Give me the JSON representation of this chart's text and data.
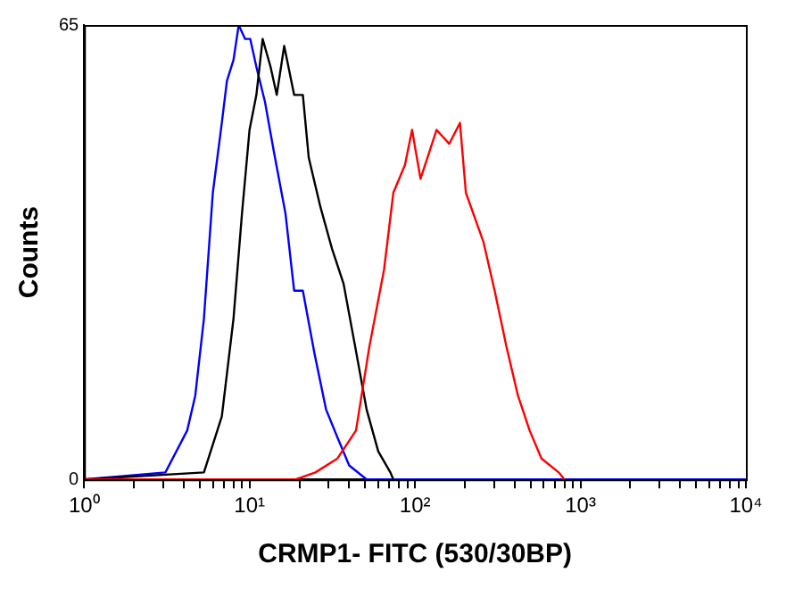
{
  "chart_data": {
    "type": "line",
    "xlabel": "CRMP1- FITC (530/30BP)",
    "ylabel": "Counts",
    "log": "x",
    "grid": false,
    "legend": false,
    "marker": "none",
    "line_style": "solid",
    "xlim": [
      1,
      10000
    ],
    "ylim": [
      0,
      65
    ],
    "xticks": [
      {
        "value": 1,
        "label": "10⁰"
      },
      {
        "value": 2,
        "label": null
      },
      {
        "value": 3,
        "label": null
      },
      {
        "value": 4,
        "label": null
      },
      {
        "value": 5,
        "label": null
      },
      {
        "value": 6,
        "label": null
      },
      {
        "value": 7,
        "label": null
      },
      {
        "value": 8,
        "label": null
      },
      {
        "value": 9,
        "label": null
      },
      {
        "value": 10,
        "label": "10¹"
      },
      {
        "value": 20,
        "label": null
      },
      {
        "value": 30,
        "label": null
      },
      {
        "value": 40,
        "label": null
      },
      {
        "value": 50,
        "label": null
      },
      {
        "value": 60,
        "label": null
      },
      {
        "value": 70,
        "label": null
      },
      {
        "value": 80,
        "label": null
      },
      {
        "value": 90,
        "label": null
      },
      {
        "value": 100,
        "label": "10²"
      },
      {
        "value": 200,
        "label": null
      },
      {
        "value": 300,
        "label": null
      },
      {
        "value": 400,
        "label": null
      },
      {
        "value": 500,
        "label": null
      },
      {
        "value": 600,
        "label": null
      },
      {
        "value": 700,
        "label": null
      },
      {
        "value": 800,
        "label": null
      },
      {
        "value": 900,
        "label": null
      },
      {
        "value": 1000,
        "label": "10³"
      },
      {
        "value": 2000,
        "label": null
      },
      {
        "value": 3000,
        "label": null
      },
      {
        "value": 4000,
        "label": null
      },
      {
        "value": 5000,
        "label": null
      },
      {
        "value": 6000,
        "label": null
      },
      {
        "value": 7000,
        "label": null
      },
      {
        "value": 8000,
        "label": null
      },
      {
        "value": 9000,
        "label": null
      },
      {
        "value": 10000,
        "label": "10⁴"
      }
    ],
    "yticks": [
      0,
      65
    ],
    "series": [
      {
        "color": "#ff0000",
        "x": [
          1,
          19,
          25,
          34,
          44,
          53,
          65,
          74,
          87,
          96,
          108,
          135,
          161,
          187,
          203,
          259,
          303,
          357,
          419,
          493,
          581,
          739,
          800
        ],
        "values": [
          0,
          0,
          1,
          3,
          7,
          19,
          30,
          41,
          45,
          50,
          43,
          50,
          48,
          51,
          41,
          34,
          27,
          19,
          12,
          7,
          3,
          1,
          0
        ]
      },
      {
        "color": "#000000",
        "x": [
          1,
          5.3,
          6.8,
          8,
          9,
          10,
          11,
          12,
          13.4,
          14.6,
          16.2,
          18.6,
          21,
          22.8,
          26.8,
          31.5,
          37,
          43.5,
          51,
          60,
          71,
          74
        ],
        "values": [
          0,
          1,
          9,
          23,
          38,
          50,
          55,
          63,
          59,
          55,
          62,
          55,
          55,
          46,
          39,
          33,
          28,
          19,
          10,
          4,
          1,
          0
        ]
      },
      {
        "color": "#0000ff",
        "x": [
          1,
          3.1,
          4.2,
          4.7,
          5.3,
          6,
          6.8,
          7.3,
          8,
          8.6,
          9.4,
          10.1,
          11,
          12.4,
          14,
          16.5,
          18.6,
          21,
          24.7,
          29,
          34,
          40,
          51,
          10000
        ],
        "values": [
          0,
          1,
          7,
          12,
          23,
          41,
          51,
          57,
          60,
          65,
          63,
          63,
          59,
          54,
          47,
          38,
          27,
          27,
          18,
          10,
          6,
          2,
          0,
          0
        ]
      }
    ]
  }
}
